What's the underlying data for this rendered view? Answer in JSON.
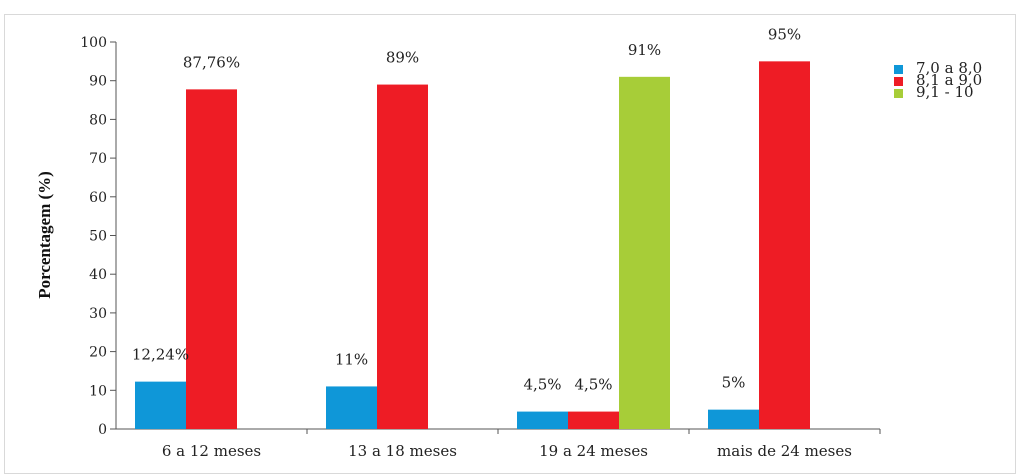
{
  "chart_data": {
    "type": "bar",
    "title": "",
    "xlabel": "",
    "ylabel": "Porcentagem (%)",
    "ylim": [
      0,
      100
    ],
    "yticks": [
      "0",
      "10",
      "20",
      "30",
      "40",
      "50",
      "60",
      "70",
      "80",
      "90",
      "100"
    ],
    "categories": [
      "6 a 12 meses",
      "13 a 18 meses",
      "19 a 24 meses",
      "mais de 24 meses"
    ],
    "legend_position": "top-right",
    "series": [
      {
        "name": "7,0 a 8,0",
        "color": "#0f97d8",
        "values": [
          12.24,
          11,
          4.5,
          5
        ],
        "labels": [
          "12,24%",
          "11%",
          "4,5%",
          "5%"
        ]
      },
      {
        "name": "8,1 a 9,0",
        "color": "#ee1c25",
        "values": [
          87.76,
          89,
          4.5,
          95
        ],
        "labels": [
          "87,76%",
          "89%",
          "4,5%",
          "95%"
        ]
      },
      {
        "name": "9,1 - 10",
        "color": "#a7cd38",
        "values": [
          null,
          null,
          91,
          null
        ],
        "labels": [
          "",
          "",
          "91%",
          ""
        ]
      }
    ]
  }
}
